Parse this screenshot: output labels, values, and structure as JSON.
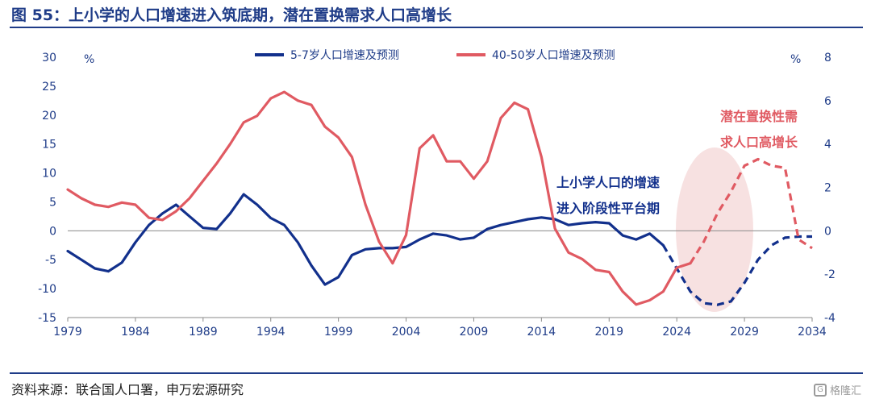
{
  "header": {
    "title": "图 55：上小学的人口增速进入筑底期，潜在置换需求人口高增长"
  },
  "footer": {
    "source": "资料来源：联合国人口署，申万宏源研究",
    "watermark": "格隆汇"
  },
  "colors": {
    "blue": "#12308c",
    "red": "#e05a62",
    "ellipse": "#f6dcdc",
    "axis": "#1f3c88"
  },
  "chart_data": {
    "type": "line",
    "left_axis": {
      "unit": "%",
      "ylim": [
        -15,
        30
      ],
      "ticks": [
        30,
        25,
        20,
        15,
        10,
        5,
        0,
        -5,
        -10,
        -15
      ]
    },
    "right_axis": {
      "unit": "%",
      "ylim": [
        -4,
        8
      ],
      "ticks": [
        8,
        6,
        4,
        2,
        0,
        -2,
        -4
      ]
    },
    "x_axis": {
      "xlim": [
        1979,
        2034
      ],
      "ticks": [
        1979,
        1984,
        1989,
        1994,
        1999,
        2004,
        2009,
        2014,
        2019,
        2024,
        2029,
        2034
      ]
    },
    "series": [
      {
        "name": "5-7岁人口增速及预测",
        "axis": "left",
        "color": "#12308c",
        "forecast_from": 2023,
        "x": [
          1979,
          1980,
          1981,
          1982,
          1983,
          1984,
          1985,
          1986,
          1987,
          1988,
          1989,
          1990,
          1991,
          1992,
          1993,
          1994,
          1995,
          1996,
          1997,
          1998,
          1999,
          2000,
          2001,
          2002,
          2003,
          2004,
          2005,
          2006,
          2007,
          2008,
          2009,
          2010,
          2011,
          2012,
          2013,
          2014,
          2015,
          2016,
          2017,
          2018,
          2019,
          2020,
          2021,
          2022,
          2023,
          2024,
          2025,
          2026,
          2027,
          2028,
          2029,
          2030,
          2031,
          2032,
          2033,
          2034
        ],
        "y": [
          -3.5,
          -5.0,
          -6.5,
          -7.0,
          -5.5,
          -2.0,
          1.0,
          3.0,
          4.5,
          2.5,
          0.5,
          0.3,
          3.0,
          6.3,
          4.5,
          2.2,
          1.0,
          -2.0,
          -6.0,
          -9.3,
          -8.0,
          -4.2,
          -3.2,
          -3.0,
          -3.0,
          -2.8,
          -1.5,
          -0.5,
          -0.8,
          -1.5,
          -1.2,
          0.3,
          1.0,
          1.5,
          2.0,
          2.3,
          2.0,
          1.0,
          1.3,
          1.5,
          1.3,
          -0.8,
          -1.5,
          -0.5,
          -2.5,
          -6.5,
          -10.5,
          -12.5,
          -12.8,
          -12.2,
          -9.0,
          -5.0,
          -2.5,
          -1.2,
          -1.0,
          -1.0
        ]
      },
      {
        "name": "40-50岁人口增速及预测",
        "axis": "right",
        "color": "#e05a62",
        "forecast_from": 2025,
        "x": [
          1979,
          1980,
          1981,
          1982,
          1983,
          1984,
          1985,
          1986,
          1987,
          1988,
          1989,
          1990,
          1991,
          1992,
          1993,
          1994,
          1995,
          1996,
          1997,
          1998,
          1999,
          2000,
          2001,
          2002,
          2003,
          2004,
          2005,
          2006,
          2007,
          2008,
          2009,
          2010,
          2011,
          2012,
          2013,
          2014,
          2015,
          2016,
          2017,
          2018,
          2019,
          2020,
          2021,
          2022,
          2023,
          2024,
          2025,
          2026,
          2027,
          2028,
          2029,
          2030,
          2031,
          2032,
          2033,
          2034
        ],
        "y": [
          1.9,
          1.5,
          1.2,
          1.1,
          1.3,
          1.2,
          0.6,
          0.5,
          0.9,
          1.5,
          2.3,
          3.1,
          4.0,
          5.0,
          5.3,
          6.1,
          6.4,
          6.0,
          5.8,
          4.8,
          4.3,
          3.4,
          1.2,
          -0.5,
          -1.5,
          -0.2,
          3.8,
          4.4,
          3.2,
          3.2,
          2.4,
          3.2,
          5.2,
          5.9,
          5.6,
          3.4,
          0.1,
          -1.0,
          -1.3,
          -1.8,
          -1.9,
          -2.8,
          -3.4,
          -3.2,
          -2.8,
          -1.7,
          -1.5,
          -0.5,
          0.8,
          1.8,
          3.0,
          3.3,
          3.0,
          2.9,
          -0.4,
          -0.8
        ]
      }
    ],
    "annotations": [
      {
        "text": "上小学人口的增速",
        "color": "#12308c"
      },
      {
        "text": "进入阶段性平台期",
        "color": "#12308c"
      },
      {
        "text": "潜在置换性需",
        "color": "#e05a62"
      },
      {
        "text": "求人口高增长",
        "color": "#e05a62"
      }
    ],
    "legend_position": "top-center"
  }
}
